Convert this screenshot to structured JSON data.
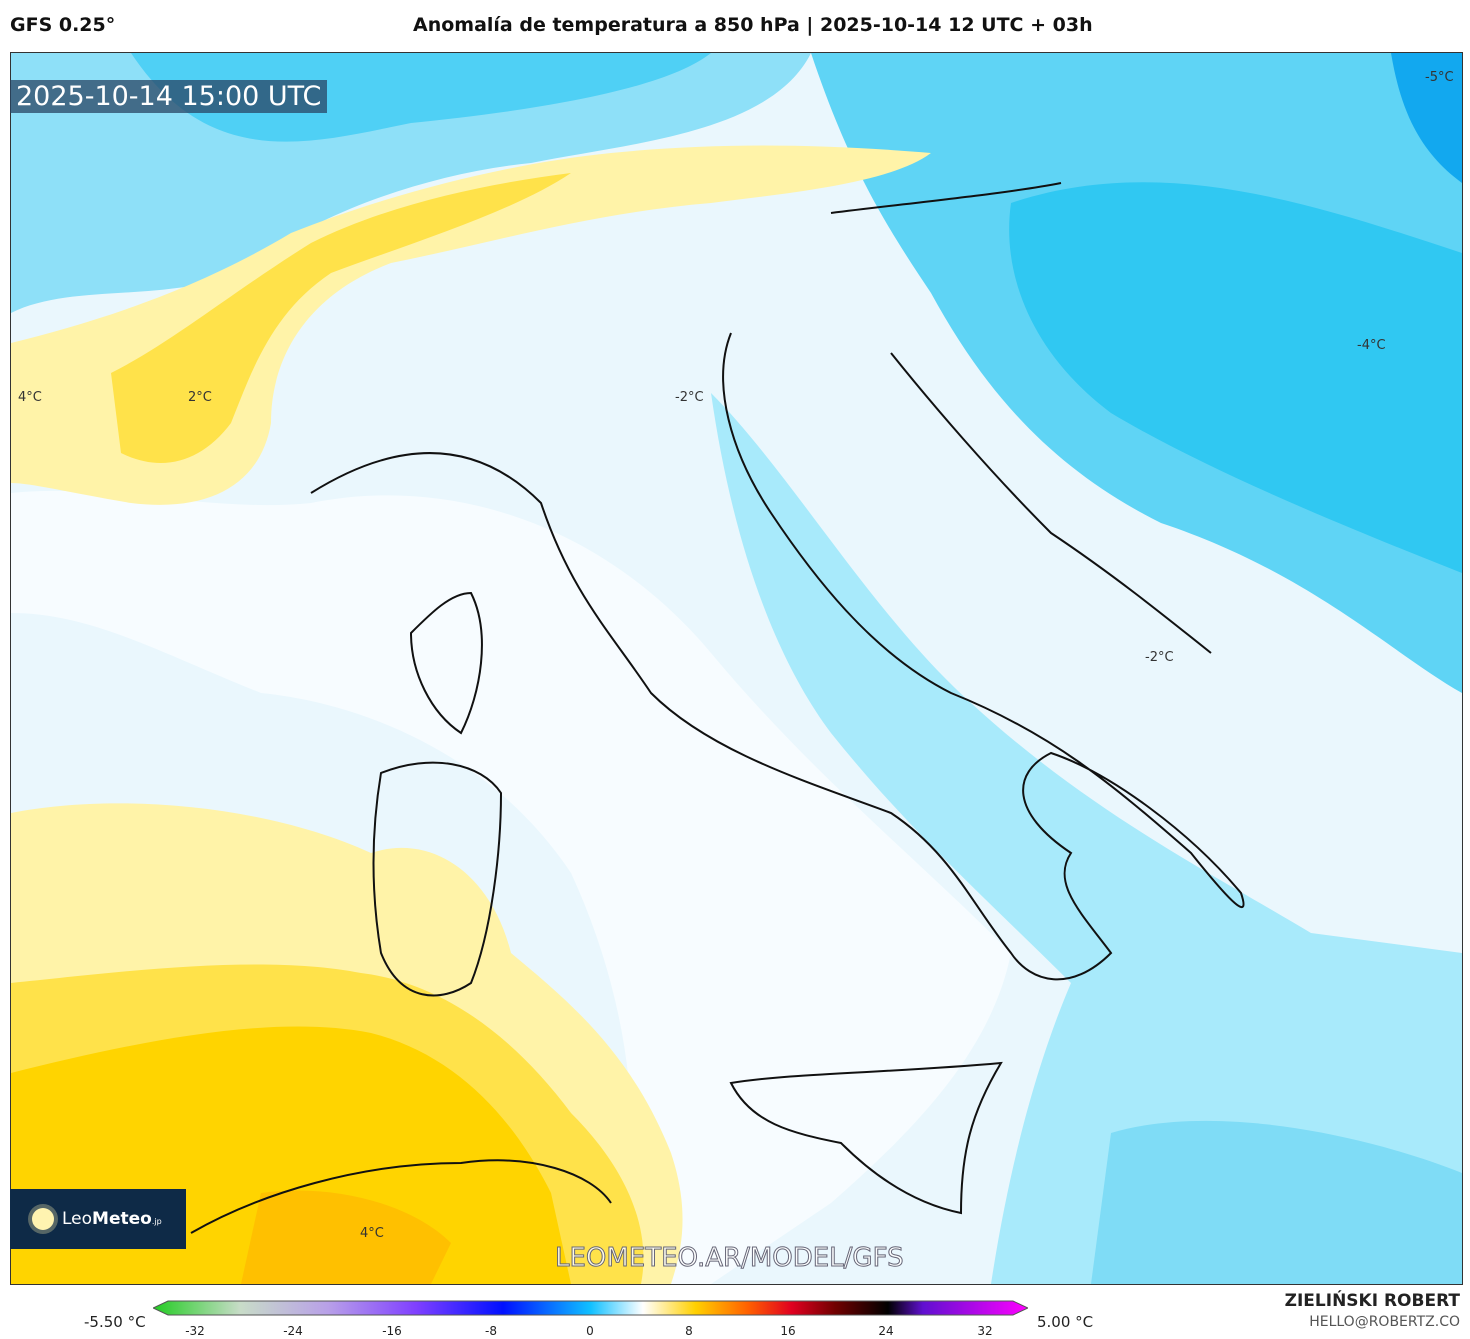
{
  "header": {
    "model": "GFS 0.25°",
    "title": "Anomalía de temperatura a 850 hPa | 2025-10-14 12 UTC + 03h"
  },
  "map": {
    "timestamp": "2025-10-14 15:00 UTC",
    "watermark": "LEOMETEO.AR/MODEL/GFS",
    "logo": "LeoMeteo.jp",
    "contour_labels": [
      "4°C",
      "2°C",
      "-2°C",
      "-4°C",
      "-5°C",
      "-2°C",
      "4°C"
    ]
  },
  "colorbar": {
    "min_label": "-5.50 °C",
    "max_label": "5.00 °C",
    "ticks": [
      "-32",
      "-24",
      "-16",
      "-8",
      "0",
      "8",
      "16",
      "24",
      "32"
    ],
    "colors": [
      "#22cc22",
      "#c8dcc8",
      "#b8a0e8",
      "#8040ff",
      "#0010ff",
      "#10c0ff",
      "#ffffff",
      "#ffd000",
      "#ff6000",
      "#e00020",
      "#700000",
      "#000000",
      "#6010d0",
      "#ff00ff"
    ]
  },
  "credits": {
    "author": "ZIELIŃSKI ROBERT",
    "email": "HELLO@ROBERTZ.CO"
  }
}
